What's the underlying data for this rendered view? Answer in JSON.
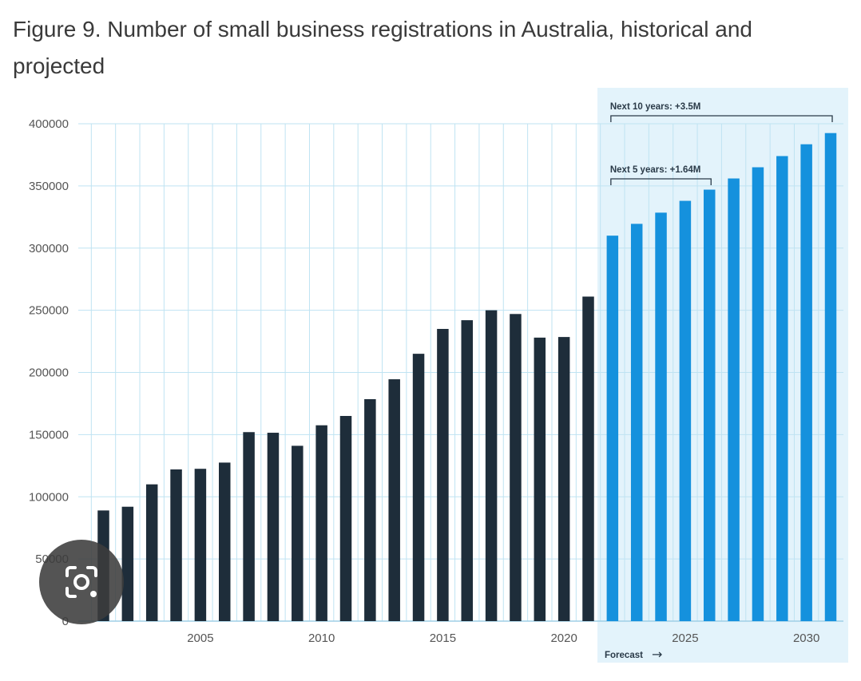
{
  "title": "Figure 9. Number of small business registrations in Australia, historical and projected",
  "chart_data": {
    "type": "bar",
    "title": "Figure 9. Number of small business registrations in Australia, historical and projected",
    "x": [
      2001,
      2002,
      2003,
      2004,
      2005,
      2006,
      2007,
      2008,
      2009,
      2010,
      2011,
      2012,
      2013,
      2014,
      2015,
      2016,
      2017,
      2018,
      2019,
      2020,
      2021,
      2022,
      2023,
      2024,
      2025,
      2026,
      2027,
      2028,
      2029,
      2030,
      2031
    ],
    "series": [
      {
        "kind": "historical",
        "color": "#1e2d3a",
        "x": [
          2001,
          2002,
          2003,
          2004,
          2005,
          2006,
          2007,
          2008,
          2009,
          2010,
          2011,
          2012,
          2013,
          2014,
          2015,
          2016,
          2017,
          2018,
          2019,
          2020,
          2021
        ],
        "values": [
          89000,
          92000,
          110000,
          122000,
          122500,
          127500,
          152000,
          151500,
          141000,
          157500,
          165000,
          178500,
          194500,
          215000,
          235000,
          242000,
          250000,
          247000,
          228000,
          228500,
          261000
        ]
      },
      {
        "kind": "forecast",
        "color": "#1591dd",
        "x": [
          2022,
          2023,
          2024,
          2025,
          2026,
          2027,
          2028,
          2029,
          2030,
          2031
        ],
        "values": [
          310000,
          319500,
          328500,
          338000,
          347000,
          356000,
          365000,
          374000,
          383500,
          392500
        ]
      }
    ],
    "y_ticks": [
      "0",
      "50000",
      "100000",
      "150000",
      "200000",
      "250000",
      "300000",
      "350000",
      "400000"
    ],
    "x_tick_labels": [
      "2005",
      "2010",
      "2015",
      "2020",
      "2025",
      "2030"
    ],
    "ylim": [
      0,
      400000
    ],
    "grid": true,
    "forecast_region": {
      "from": 2022,
      "to": 2031,
      "label": "Forecast",
      "arrow": "→",
      "color": "#e3f3fb"
    },
    "annotations": [
      {
        "text": "Next 10 years: +3.5M",
        "from": 2022,
        "to": 2031
      },
      {
        "text": "Next 5 years: +1.64M",
        "from": 2022,
        "to": 2026
      }
    ],
    "xlabel": "",
    "ylabel": ""
  },
  "overlay": {
    "icon": "camera-search-icon"
  }
}
